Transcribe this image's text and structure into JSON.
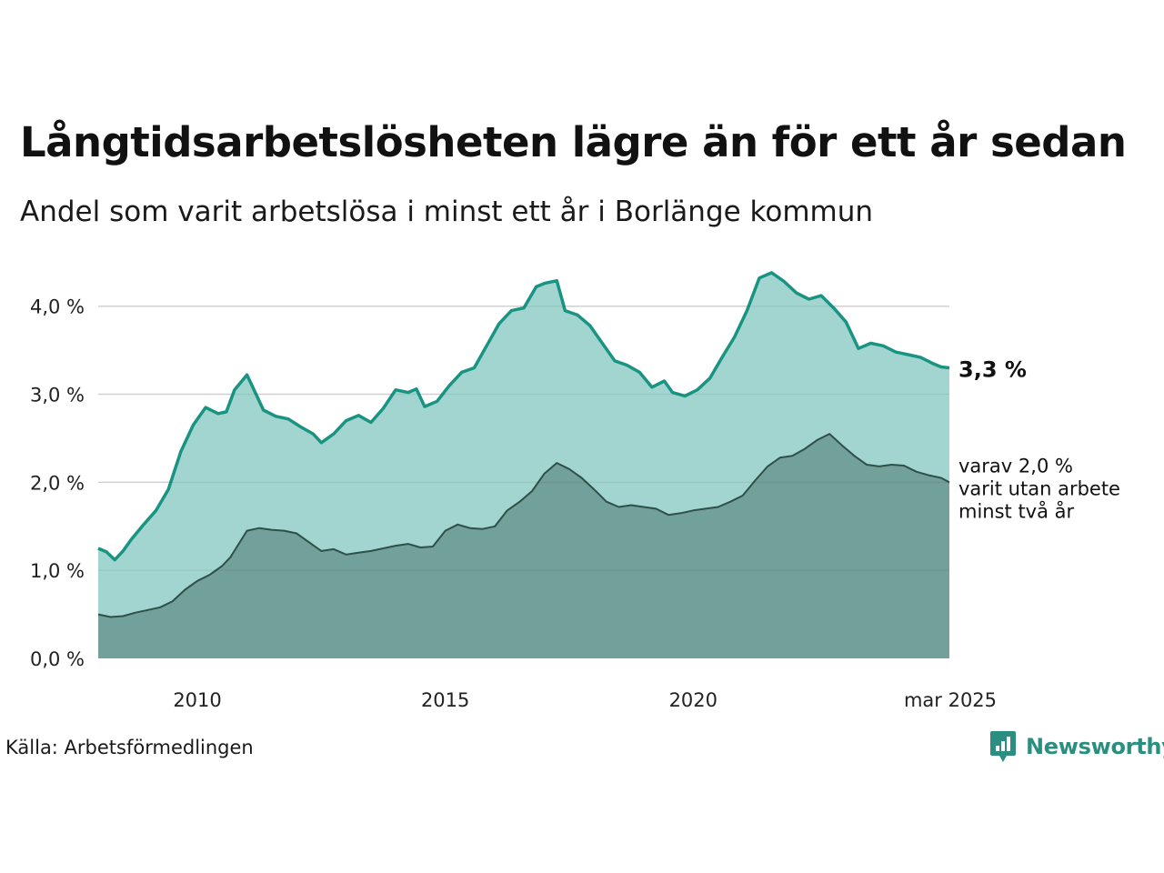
{
  "title": "Långtidsarbetslösheten lägre än för ett år sedan",
  "subtitle": "Andel som varit arbetslösa i minst ett år i Borlänge kommun",
  "source": "Källa: Arbetsförmedlingen",
  "logo": {
    "name": "Newsworthy",
    "icon": "newsworthy-logo-icon"
  },
  "colors": {
    "upper_fill": "#a2d5cf",
    "upper_line": "#1a9482",
    "lower_fill": "#72a09a",
    "lower_line": "#2f4f49",
    "grid": "#dedede"
  },
  "chart_data": {
    "type": "area",
    "x_range": [
      "2008-01",
      "2025-03"
    ],
    "ylim": [
      0,
      4.4
    ],
    "y_ticks": [
      {
        "value": 0,
        "label": "0,0 %"
      },
      {
        "value": 1,
        "label": "1,0 %"
      },
      {
        "value": 2,
        "label": "2,0 %"
      },
      {
        "value": 3,
        "label": "3,0 %"
      },
      {
        "value": 4,
        "label": "4,0 %"
      }
    ],
    "x_ticks": [
      {
        "date": "2010-01",
        "label": "2010"
      },
      {
        "date": "2015-01",
        "label": "2015"
      },
      {
        "date": "2020-01",
        "label": "2020"
      },
      {
        "date": "2025-03",
        "label": "mar 2025"
      }
    ],
    "grid": true,
    "series": [
      {
        "key": "minst-ett-ar",
        "points": [
          [
            "2008-01",
            1.25
          ],
          [
            "2008-03",
            1.21
          ],
          [
            "2008-05",
            1.12
          ],
          [
            "2008-07",
            1.22
          ],
          [
            "2008-09",
            1.35
          ],
          [
            "2008-12",
            1.52
          ],
          [
            "2009-03",
            1.68
          ],
          [
            "2009-06",
            1.92
          ],
          [
            "2009-09",
            2.35
          ],
          [
            "2009-12",
            2.65
          ],
          [
            "2010-03",
            2.85
          ],
          [
            "2010-06",
            2.78
          ],
          [
            "2010-08",
            2.8
          ],
          [
            "2010-10",
            3.05
          ],
          [
            "2011-01",
            3.22
          ],
          [
            "2011-03",
            3.02
          ],
          [
            "2011-05",
            2.82
          ],
          [
            "2011-08",
            2.75
          ],
          [
            "2011-11",
            2.72
          ],
          [
            "2012-02",
            2.63
          ],
          [
            "2012-05",
            2.55
          ],
          [
            "2012-07",
            2.45
          ],
          [
            "2012-10",
            2.55
          ],
          [
            "2013-01",
            2.7
          ],
          [
            "2013-04",
            2.76
          ],
          [
            "2013-07",
            2.68
          ],
          [
            "2013-10",
            2.84
          ],
          [
            "2014-01",
            3.05
          ],
          [
            "2014-04",
            3.02
          ],
          [
            "2014-06",
            3.06
          ],
          [
            "2014-08",
            2.86
          ],
          [
            "2014-11",
            2.92
          ],
          [
            "2015-02",
            3.1
          ],
          [
            "2015-05",
            3.25
          ],
          [
            "2015-08",
            3.3
          ],
          [
            "2015-11",
            3.55
          ],
          [
            "2016-02",
            3.8
          ],
          [
            "2016-05",
            3.95
          ],
          [
            "2016-08",
            3.98
          ],
          [
            "2016-11",
            4.22
          ],
          [
            "2017-01",
            4.26
          ],
          [
            "2017-04",
            4.29
          ],
          [
            "2017-06",
            3.95
          ],
          [
            "2017-09",
            3.9
          ],
          [
            "2017-12",
            3.78
          ],
          [
            "2018-03",
            3.58
          ],
          [
            "2018-06",
            3.38
          ],
          [
            "2018-09",
            3.33
          ],
          [
            "2018-12",
            3.25
          ],
          [
            "2019-03",
            3.08
          ],
          [
            "2019-06",
            3.15
          ],
          [
            "2019-08",
            3.02
          ],
          [
            "2019-11",
            2.98
          ],
          [
            "2020-02",
            3.05
          ],
          [
            "2020-05",
            3.18
          ],
          [
            "2020-08",
            3.42
          ],
          [
            "2020-11",
            3.65
          ],
          [
            "2021-02",
            3.95
          ],
          [
            "2021-05",
            4.32
          ],
          [
            "2021-08",
            4.38
          ],
          [
            "2021-11",
            4.28
          ],
          [
            "2022-02",
            4.15
          ],
          [
            "2022-05",
            4.08
          ],
          [
            "2022-08",
            4.12
          ],
          [
            "2022-11",
            3.98
          ],
          [
            "2023-02",
            3.82
          ],
          [
            "2023-05",
            3.52
          ],
          [
            "2023-08",
            3.58
          ],
          [
            "2023-11",
            3.55
          ],
          [
            "2024-02",
            3.48
          ],
          [
            "2024-05",
            3.45
          ],
          [
            "2024-08",
            3.42
          ],
          [
            "2024-11",
            3.35
          ],
          [
            "2025-01",
            3.31
          ],
          [
            "2025-03",
            3.3
          ]
        ]
      },
      {
        "key": "minst-tva-ar",
        "points": [
          [
            "2008-01",
            0.5
          ],
          [
            "2008-04",
            0.47
          ],
          [
            "2008-07",
            0.48
          ],
          [
            "2008-10",
            0.52
          ],
          [
            "2009-01",
            0.55
          ],
          [
            "2009-04",
            0.58
          ],
          [
            "2009-07",
            0.65
          ],
          [
            "2009-10",
            0.78
          ],
          [
            "2010-01",
            0.88
          ],
          [
            "2010-04",
            0.95
          ],
          [
            "2010-07",
            1.05
          ],
          [
            "2010-09",
            1.15
          ],
          [
            "2010-11",
            1.3
          ],
          [
            "2011-01",
            1.45
          ],
          [
            "2011-04",
            1.48
          ],
          [
            "2011-07",
            1.46
          ],
          [
            "2011-10",
            1.45
          ],
          [
            "2012-01",
            1.42
          ],
          [
            "2012-04",
            1.32
          ],
          [
            "2012-07",
            1.22
          ],
          [
            "2012-10",
            1.24
          ],
          [
            "2013-01",
            1.18
          ],
          [
            "2013-04",
            1.2
          ],
          [
            "2013-07",
            1.22
          ],
          [
            "2013-10",
            1.25
          ],
          [
            "2014-01",
            1.28
          ],
          [
            "2014-04",
            1.3
          ],
          [
            "2014-07",
            1.26
          ],
          [
            "2014-10",
            1.27
          ],
          [
            "2015-01",
            1.45
          ],
          [
            "2015-04",
            1.52
          ],
          [
            "2015-07",
            1.48
          ],
          [
            "2015-10",
            1.47
          ],
          [
            "2016-01",
            1.5
          ],
          [
            "2016-04",
            1.68
          ],
          [
            "2016-07",
            1.78
          ],
          [
            "2016-10",
            1.9
          ],
          [
            "2017-01",
            2.1
          ],
          [
            "2017-04",
            2.22
          ],
          [
            "2017-07",
            2.15
          ],
          [
            "2017-10",
            2.05
          ],
          [
            "2018-01",
            1.92
          ],
          [
            "2018-04",
            1.78
          ],
          [
            "2018-07",
            1.72
          ],
          [
            "2018-10",
            1.74
          ],
          [
            "2019-01",
            1.72
          ],
          [
            "2019-04",
            1.7
          ],
          [
            "2019-07",
            1.63
          ],
          [
            "2019-10",
            1.65
          ],
          [
            "2020-01",
            1.68
          ],
          [
            "2020-04",
            1.7
          ],
          [
            "2020-07",
            1.72
          ],
          [
            "2020-10",
            1.78
          ],
          [
            "2021-01",
            1.85
          ],
          [
            "2021-04",
            2.02
          ],
          [
            "2021-07",
            2.18
          ],
          [
            "2021-10",
            2.28
          ],
          [
            "2022-01",
            2.3
          ],
          [
            "2022-04",
            2.38
          ],
          [
            "2022-07",
            2.48
          ],
          [
            "2022-10",
            2.55
          ],
          [
            "2023-01",
            2.42
          ],
          [
            "2023-04",
            2.3
          ],
          [
            "2023-07",
            2.2
          ],
          [
            "2023-10",
            2.18
          ],
          [
            "2024-01",
            2.2
          ],
          [
            "2024-04",
            2.19
          ],
          [
            "2024-07",
            2.12
          ],
          [
            "2024-10",
            2.08
          ],
          [
            "2025-01",
            2.05
          ],
          [
            "2025-03",
            2.0
          ]
        ]
      }
    ],
    "annotations": [
      {
        "series": "minst-ett-ar",
        "label": "3,3 %"
      },
      {
        "series": "minst-tva-ar",
        "lines": [
          "varav 2,0 %",
          "varit utan arbete",
          "minst två år"
        ]
      }
    ]
  }
}
